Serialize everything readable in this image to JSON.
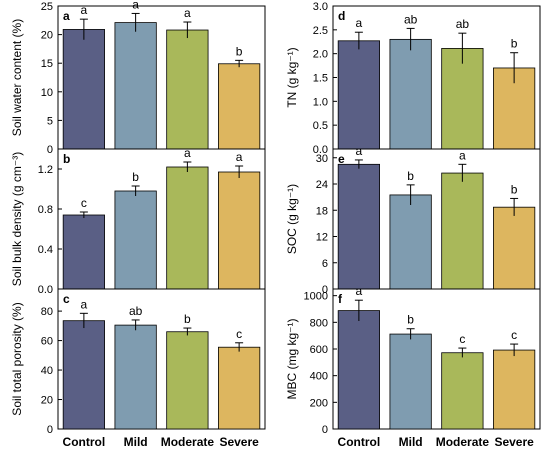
{
  "chart_data": [
    {
      "type": "bar",
      "panel_label": "a",
      "categories": [
        "Control",
        "Mild",
        "Moderate",
        "Severe"
      ],
      "values": [
        20.9,
        22.1,
        20.8,
        14.9
      ],
      "errors": [
        1.8,
        1.6,
        1.4,
        0.6
      ],
      "letters": [
        "a",
        "a",
        "a",
        "b"
      ],
      "ylabel": "Soil water content (%)",
      "ylim": [
        0,
        25
      ],
      "yticks": [
        0,
        5,
        10,
        15,
        20,
        25
      ]
    },
    {
      "type": "bar",
      "panel_label": "b",
      "categories": [
        "Control",
        "Mild",
        "Moderate",
        "Severe"
      ],
      "values": [
        0.74,
        0.98,
        1.22,
        1.17
      ],
      "errors": [
        0.03,
        0.05,
        0.05,
        0.06
      ],
      "letters": [
        "c",
        "b",
        "a",
        "a"
      ],
      "ylabel": "Soil bulk density (g cm⁻³)",
      "ylim": [
        0,
        1.4
      ],
      "yticks": [
        0.0,
        0.4,
        0.8,
        1.2
      ]
    },
    {
      "type": "bar",
      "panel_label": "c",
      "categories": [
        "Control",
        "Mild",
        "Moderate",
        "Severe"
      ],
      "values": [
        73.5,
        70.5,
        66,
        55.5
      ],
      "errors": [
        5,
        3.5,
        2.5,
        3
      ],
      "letters": [
        "a",
        "ab",
        "b",
        "c"
      ],
      "ylabel": "Soil total porosity (%)",
      "ylim": [
        0,
        95
      ],
      "yticks": [
        0,
        20,
        40,
        60,
        80
      ]
    },
    {
      "type": "bar",
      "panel_label": "d",
      "categories": [
        "Control",
        "Mild",
        "Moderate",
        "Severe"
      ],
      "values": [
        2.27,
        2.3,
        2.11,
        1.7
      ],
      "errors": [
        0.18,
        0.23,
        0.32,
        0.32
      ],
      "letters": [
        "a",
        "ab",
        "ab",
        "b"
      ],
      "ylabel": "TN (g kg⁻¹)",
      "ylim": [
        0,
        3.0
      ],
      "yticks": [
        0.0,
        0.5,
        1.0,
        1.5,
        2.0,
        2.5,
        3.0
      ]
    },
    {
      "type": "bar",
      "panel_label": "e",
      "categories": [
        "Control",
        "Mild",
        "Moderate",
        "Severe"
      ],
      "values": [
        28.5,
        21.5,
        26.5,
        18.7
      ],
      "errors": [
        1,
        2.3,
        2,
        2
      ],
      "letters": [
        "a",
        "b",
        "a",
        "b"
      ],
      "ylabel": "SOC (g kg⁻¹)",
      "ylim": [
        0,
        32
      ],
      "yticks": [
        0,
        6,
        12,
        18,
        24,
        30
      ]
    },
    {
      "type": "bar",
      "panel_label": "f",
      "categories": [
        "Control",
        "Mild",
        "Moderate",
        "Severe"
      ],
      "values": [
        888,
        712,
        572,
        592
      ],
      "errors": [
        78,
        40,
        35,
        45
      ],
      "letters": [
        "a",
        "b",
        "c",
        "c"
      ],
      "ylabel": "MBC (mg kg⁻¹)",
      "ylim": [
        0,
        1050
      ],
      "yticks": [
        0,
        200,
        400,
        600,
        800,
        1000
      ]
    }
  ],
  "colors": [
    "#5a5f85",
    "#7f9cb0",
    "#a9b85a",
    "#ddb65f"
  ]
}
